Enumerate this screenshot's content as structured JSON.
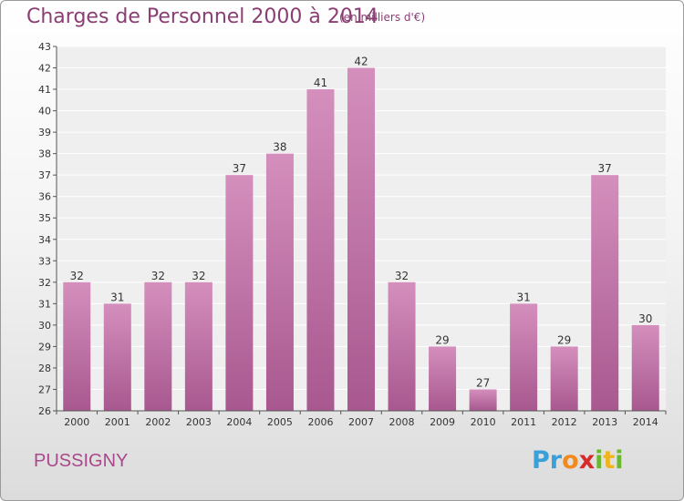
{
  "chart_data": {
    "type": "bar",
    "title": "Charges de Personnel 2000 à 2014",
    "subtitle": "(en milliers d'€)",
    "categories": [
      "2000",
      "2001",
      "2002",
      "2003",
      "2004",
      "2005",
      "2006",
      "2007",
      "2008",
      "2009",
      "2010",
      "2011",
      "2012",
      "2013",
      "2014"
    ],
    "values": [
      32,
      31,
      32,
      32,
      37,
      38,
      41,
      42,
      32,
      29,
      27,
      31,
      29,
      37,
      30
    ],
    "ylim": [
      26,
      43
    ],
    "yticks": [
      26,
      27,
      28,
      29,
      30,
      31,
      32,
      33,
      34,
      35,
      36,
      37,
      38,
      39,
      40,
      41,
      42,
      43
    ],
    "grid": true,
    "bar_color": "#d48fbd",
    "bar_color_dark": "#a8588f"
  },
  "commune": "PUSSIGNY",
  "logo": {
    "letters": [
      "P",
      "r",
      "o",
      "x",
      "i",
      "t",
      "i"
    ],
    "colors": [
      "#3aa0d8",
      "#3aa0d8",
      "#f08a1c",
      "#d62b2b",
      "#6ab82e",
      "#f0b41c",
      "#6ab82e"
    ]
  }
}
